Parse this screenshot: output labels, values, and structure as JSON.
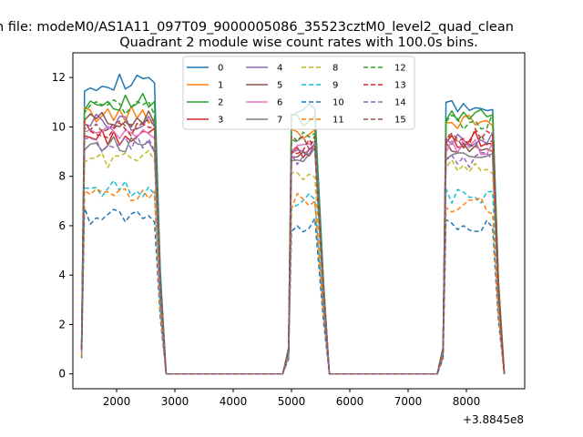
{
  "chart_data": {
    "type": "line",
    "suptitle": "n file: modeM0/AS1A11_097T09_9000005086_35523cztM0_level2_quad_clean",
    "title": "Quadrant 2 module wise count rates with 100.0s bins.",
    "xlabel": "",
    "ylabel": "",
    "offset_label": "+3.8845e8",
    "xlim": [
      1250,
      9000
    ],
    "ylim": [
      -0.6,
      13.0
    ],
    "x_ticks": [
      2000,
      3000,
      4000,
      5000,
      6000,
      7000,
      8000
    ],
    "x_tick_labels": [
      "2000",
      "3000",
      "4000",
      "5000",
      "6000",
      "7000",
      "8000"
    ],
    "y_ticks": [
      0,
      2,
      4,
      6,
      8,
      10,
      12
    ],
    "y_tick_labels": [
      "0",
      "2",
      "4",
      "6",
      "8",
      "10",
      "12"
    ],
    "grid": false,
    "legend": {
      "placement": "top-center",
      "columns": 4
    },
    "segments": [
      {
        "x_start": 1450,
        "x_end": 2650
      },
      {
        "x_start": 5000,
        "x_end": 5450
      },
      {
        "x_start": 7650,
        "x_end": 8450
      }
    ],
    "zero_intervals": [
      [
        2850,
        4750
      ],
      [
        5650,
        7550
      ]
    ],
    "series": [
      {
        "name": "0",
        "color": "#1f77b4",
        "dash": "solid",
        "levels": [
          11.8,
          10.6,
          10.8
        ]
      },
      {
        "name": "1",
        "color": "#ff7f0e",
        "dash": "solid",
        "levels": [
          10.5,
          9.8,
          10.2
        ]
      },
      {
        "name": "2",
        "color": "#2ca02c",
        "dash": "solid",
        "levels": [
          11.0,
          10.2,
          10.4
        ]
      },
      {
        "name": "3",
        "color": "#d62728",
        "dash": "solid",
        "levels": [
          9.6,
          9.0,
          9.5
        ]
      },
      {
        "name": "4",
        "color": "#9467bd",
        "dash": "solid",
        "levels": [
          10.2,
          9.0,
          9.5
        ]
      },
      {
        "name": "5",
        "color": "#8c564b",
        "dash": "solid",
        "levels": [
          10.3,
          8.8,
          9.3
        ]
      },
      {
        "name": "6",
        "color": "#e377c2",
        "dash": "solid",
        "levels": [
          9.7,
          9.2,
          9.2
        ]
      },
      {
        "name": "7",
        "color": "#7f7f7f",
        "dash": "solid",
        "levels": [
          9.3,
          8.9,
          9.0
        ]
      },
      {
        "name": "8",
        "color": "#bcbd22",
        "dash": "dashed",
        "levels": [
          8.7,
          8.2,
          8.4
        ]
      },
      {
        "name": "9",
        "color": "#17becf",
        "dash": "dashed",
        "levels": [
          7.5,
          7.0,
          7.2
        ]
      },
      {
        "name": "10",
        "color": "#1f77b4",
        "dash": "dashed",
        "levels": [
          6.4,
          6.0,
          6.1
        ]
      },
      {
        "name": "11",
        "color": "#ff7f0e",
        "dash": "dashed",
        "levels": [
          7.2,
          7.0,
          6.8
        ]
      },
      {
        "name": "12",
        "color": "#2ca02c",
        "dash": "dashed",
        "levels": [
          10.8,
          9.7,
          10.2
        ]
      },
      {
        "name": "13",
        "color": "#d62728",
        "dash": "dashed",
        "levels": [
          9.9,
          9.2,
          9.6
        ]
      },
      {
        "name": "14",
        "color": "#9467bd",
        "dash": "dashed",
        "levels": [
          9.3,
          8.8,
          8.7
        ]
      },
      {
        "name": "15",
        "color": "#8c564b",
        "dash": "dashed",
        "levels": [
          10.0,
          9.3,
          9.4
        ]
      }
    ]
  }
}
